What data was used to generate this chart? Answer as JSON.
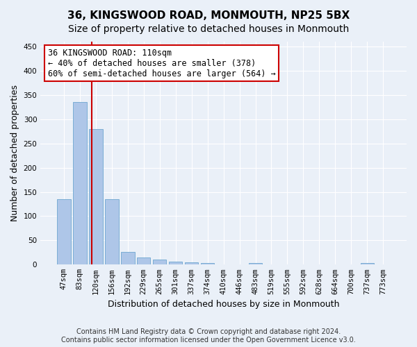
{
  "title": "36, KINGSWOOD ROAD, MONMOUTH, NP25 5BX",
  "subtitle": "Size of property relative to detached houses in Monmouth",
  "xlabel": "Distribution of detached houses by size in Monmouth",
  "ylabel": "Number of detached properties",
  "categories": [
    "47sqm",
    "83sqm",
    "120sqm",
    "156sqm",
    "192sqm",
    "229sqm",
    "265sqm",
    "301sqm",
    "337sqm",
    "374sqm",
    "410sqm",
    "446sqm",
    "483sqm",
    "519sqm",
    "555sqm",
    "592sqm",
    "628sqm",
    "664sqm",
    "700sqm",
    "737sqm",
    "773sqm"
  ],
  "values": [
    135,
    335,
    280,
    135,
    26,
    15,
    11,
    6,
    5,
    4,
    0,
    0,
    4,
    0,
    0,
    0,
    0,
    0,
    0,
    4,
    0
  ],
  "bar_color": "#aec6e8",
  "bar_edge_color": "#7aadd4",
  "vline_x_index": 1.65,
  "vline_color": "#cc0000",
  "annotation_text": "36 KINGSWOOD ROAD: 110sqm\n← 40% of detached houses are smaller (378)\n60% of semi-detached houses are larger (564) →",
  "annotation_box_color": "#ffffff",
  "annotation_box_edge_color": "#cc0000",
  "ylim": [
    0,
    460
  ],
  "yticks": [
    0,
    50,
    100,
    150,
    200,
    250,
    300,
    350,
    400,
    450
  ],
  "bg_color": "#eaf0f8",
  "plot_bg_color": "#eaf0f8",
  "grid_color": "#ffffff",
  "footer_text": "Contains HM Land Registry data © Crown copyright and database right 2024.\nContains public sector information licensed under the Open Government Licence v3.0.",
  "title_fontsize": 11,
  "subtitle_fontsize": 10,
  "xlabel_fontsize": 9,
  "ylabel_fontsize": 9,
  "tick_fontsize": 7.5,
  "annotation_fontsize": 8.5
}
